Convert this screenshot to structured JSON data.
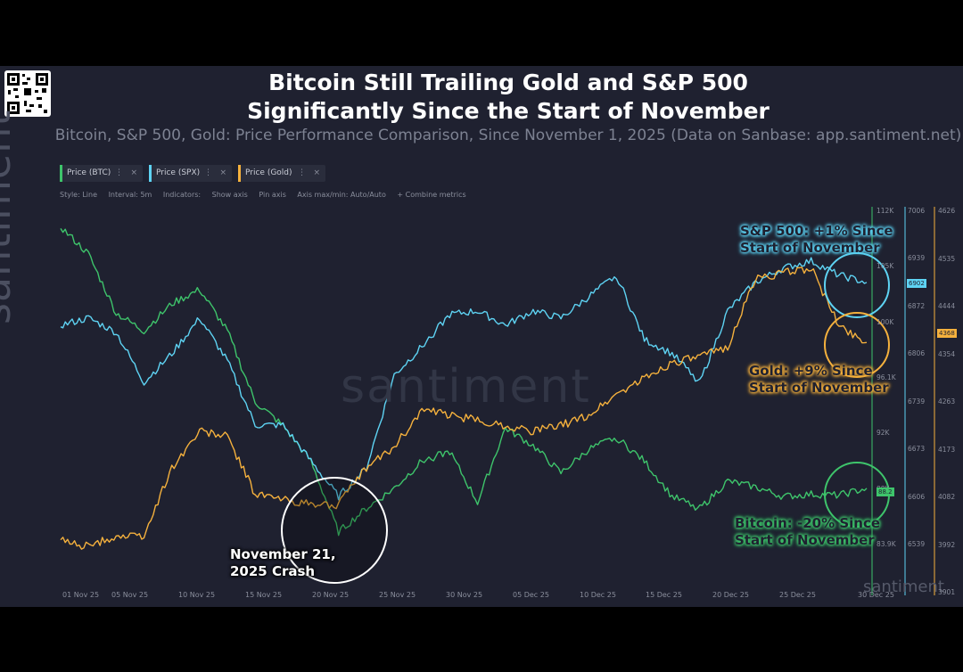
{
  "header": {
    "title_line1": "Bitcoin Still Trailing Gold and S&P 500",
    "title_line2": "Significantly Since the Start of November",
    "subtitle": "Bitcoin, S&P 500, Gold: Price Performance Comparison, Since November 1, 2025 (Data on Sanbase: app.santiment.net)"
  },
  "tabs": [
    {
      "label": "Price (BTC)",
      "color": "#3ec46b"
    },
    {
      "label": "Price (SPX)",
      "color": "#5ed3f3"
    },
    {
      "label": "Price (Gold)",
      "color": "#f5b13d"
    }
  ],
  "toolbar": {
    "style": "Style: Line",
    "interval": "Interval: 5m",
    "indicators": "Indicators:",
    "show_axis": "Show axis",
    "pin_axis": "Pin axis",
    "axis_minmax": "Axis max/min: Auto/Auto",
    "combine": "+ Combine metrics"
  },
  "watermark": "santiment",
  "annotations": {
    "spx_1": "S&P 500: +1% Since",
    "spx_2": "Start of November",
    "gold_1": "Gold: +9% Since",
    "gold_2": "Start of November",
    "btc_1": "Bitcoin: -20% Since",
    "btc_2": "Start of November",
    "crash_1": "November 21,",
    "crash_2": "2025 Crash"
  },
  "chart_data": {
    "type": "line",
    "x_ticks": [
      "01 Nov 25",
      "05 Nov 25",
      "10 Nov 25",
      "15 Nov 25",
      "20 Nov 25",
      "25 Nov 25",
      "30 Nov 25",
      "05 Dec 25",
      "10 Dec 25",
      "15 Dec 25",
      "20 Dec 25",
      "25 Dec 25",
      "30 Dec 25"
    ],
    "axes": {
      "btc": {
        "ticks": [
          "112K",
          "105K",
          "100K",
          "96.1K",
          "92K",
          "88K",
          "83.9K"
        ],
        "badge": "88.2",
        "color": "#3ec46b"
      },
      "spx": {
        "ticks": [
          "7006",
          "6939",
          "6872",
          "6806",
          "6739",
          "6673",
          "6606",
          "6539"
        ],
        "badge": "6902",
        "color": "#5ed3f3"
      },
      "gold": {
        "ticks": [
          "4626",
          "4535",
          "4444",
          "4354",
          "4263",
          "4173",
          "4082",
          "3992",
          "3901"
        ],
        "badge": "4368",
        "color": "#f5b13d"
      }
    },
    "series": [
      {
        "name": "Price (BTC)",
        "color": "#3ec46b",
        "x": [
          "01 Nov",
          "03 Nov",
          "05 Nov",
          "07 Nov",
          "09 Nov",
          "11 Nov",
          "13 Nov",
          "15 Nov",
          "17 Nov",
          "19 Nov",
          "21 Nov",
          "23 Nov",
          "25 Nov",
          "27 Nov",
          "29 Nov",
          "01 Dec",
          "03 Dec",
          "05 Dec",
          "07 Dec",
          "09 Dec",
          "11 Dec",
          "13 Dec",
          "15 Dec",
          "17 Dec",
          "19 Dec",
          "21 Dec",
          "23 Dec",
          "25 Dec",
          "27 Dec",
          "29 Dec"
        ],
        "y": [
          110300,
          108000,
          103000,
          101500,
          103800,
          105000,
          101500,
          95500,
          93500,
          90500,
          84500,
          86500,
          88200,
          90500,
          91300,
          87000,
          93300,
          91800,
          89500,
          91500,
          92500,
          90500,
          87500,
          86500,
          88800,
          88300,
          87500,
          87700,
          87600,
          88200
        ]
      },
      {
        "name": "Price (SPX)",
        "color": "#5ed3f3",
        "x": [
          "01 Nov",
          "03 Nov",
          "05 Nov",
          "07 Nov",
          "09 Nov",
          "11 Nov",
          "13 Nov",
          "15 Nov",
          "17 Nov",
          "19 Nov",
          "21 Nov",
          "23 Nov",
          "25 Nov",
          "27 Nov",
          "29 Nov",
          "01 Dec",
          "03 Dec",
          "05 Dec",
          "07 Dec",
          "09 Dec",
          "11 Dec",
          "13 Dec",
          "15 Dec",
          "17 Dec",
          "19 Dec",
          "21 Dec",
          "23 Dec",
          "25 Dec",
          "27 Dec",
          "29 Dec"
        ],
        "y": [
          6840,
          6850,
          6830,
          6760,
          6800,
          6850,
          6790,
          6700,
          6700,
          6650,
          6600,
          6640,
          6770,
          6810,
          6855,
          6860,
          6840,
          6860,
          6850,
          6880,
          6910,
          6820,
          6800,
          6760,
          6860,
          6900,
          6920,
          6930,
          6910,
          6900
        ]
      },
      {
        "name": "Price (Gold)",
        "color": "#f5b13d",
        "x": [
          "01 Nov",
          "03 Nov",
          "05 Nov",
          "07 Nov",
          "09 Nov",
          "11 Nov",
          "13 Nov",
          "15 Nov",
          "17 Nov",
          "19 Nov",
          "21 Nov",
          "23 Nov",
          "25 Nov",
          "27 Nov",
          "29 Nov",
          "01 Dec",
          "03 Dec",
          "05 Dec",
          "07 Dec",
          "09 Dec",
          "11 Dec",
          "13 Dec",
          "15 Dec",
          "17 Dec",
          "19 Dec",
          "21 Dec",
          "23 Dec",
          "25 Dec",
          "27 Dec",
          "29 Dec"
        ],
        "y": [
          3992,
          3980,
          4000,
          4000,
          4130,
          4200,
          4190,
          4080,
          4070,
          4060,
          4060,
          4130,
          4170,
          4240,
          4230,
          4220,
          4210,
          4200,
          4210,
          4230,
          4270,
          4300,
          4330,
          4340,
          4360,
          4490,
          4500,
          4510,
          4400,
          4368
        ]
      }
    ]
  }
}
